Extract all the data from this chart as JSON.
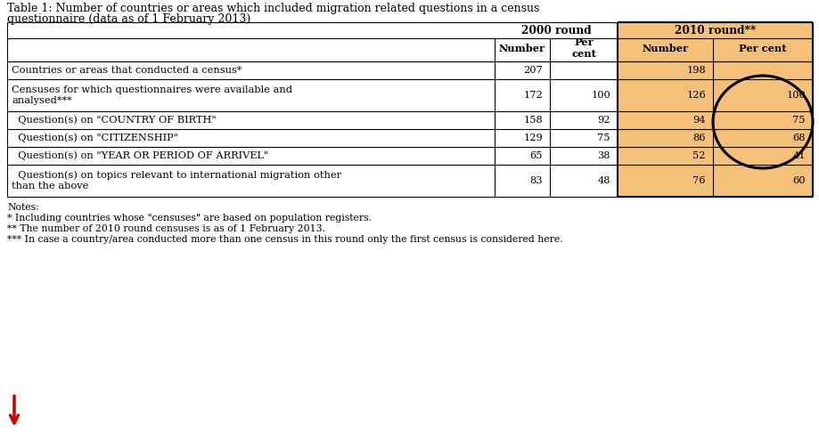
{
  "title_line1": "Table 1: Number of countries or areas which included migration related questions in a census",
  "title_line2": "questionnaire (data as of 1 February 2013)",
  "rows": [
    {
      "label": "Countries or areas that conducted a census*",
      "n2000": "207",
      "p2000": "",
      "n2010": "198",
      "p2010": "",
      "two_line": false
    },
    {
      "label": "Censuses for which questionnaires were available and\nanalysed***",
      "n2000": "172",
      "p2000": "100",
      "n2010": "126",
      "p2010": "100",
      "two_line": true
    },
    {
      "label": "  Question(s) on \"COUNTRY OF BIRTH\"",
      "n2000": "158",
      "p2000": "92",
      "n2010": "94",
      "p2010": "75",
      "two_line": false
    },
    {
      "label": "  Question(s) on \"CITIZENSHIP\"",
      "n2000": "129",
      "p2000": "75",
      "n2010": "86",
      "p2010": "68",
      "two_line": false
    },
    {
      "label": "  Question(s) on \"YEAR OR PERIOD OF ARRIVEL\"",
      "n2000": "65",
      "p2000": "38",
      "n2010": "52",
      "p2010": "41",
      "two_line": false
    },
    {
      "label": "  Question(s) on topics relevant to international migration other\nthan the above",
      "n2000": "83",
      "p2000": "48",
      "n2010": "76",
      "p2010": "60",
      "two_line": true
    }
  ],
  "notes": [
    "Notes:",
    "* Including countries whose \"censuses\" are based on population registers.",
    "** The number of 2010 round censuses is as of 1 February 2013.",
    "*** In case a country/area conducted more than one census in this round only the first census is considered here."
  ],
  "bg_color_2010": "#F5C07A",
  "bg_color_white": "#FFFFFF",
  "text_color": "#000000",
  "arrow_color": "#CC0000",
  "circle_color": "#000000",
  "fig_width": 9.2,
  "fig_height": 4.92,
  "dpi": 100
}
